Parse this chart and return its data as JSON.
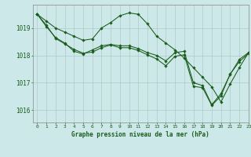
{
  "background_color": "#cce8e8",
  "grid_color": "#b0c8c8",
  "line_color": "#1a5c1a",
  "title": "Graphe pression niveau de la mer (hPa)",
  "xlim": [
    -0.5,
    23
  ],
  "ylim": [
    1015.55,
    1019.85
  ],
  "yticks": [
    1016,
    1017,
    1018,
    1019
  ],
  "xticks": [
    0,
    1,
    2,
    3,
    4,
    5,
    6,
    7,
    8,
    9,
    10,
    11,
    12,
    13,
    14,
    15,
    16,
    17,
    18,
    19,
    20,
    21,
    22,
    23
  ],
  "series": [
    {
      "x": [
        0,
        1,
        2,
        3,
        4,
        5,
        6,
        7,
        8,
        9,
        10,
        11,
        12,
        13,
        14,
        15,
        16,
        17,
        18,
        19,
        20,
        21,
        22,
        23
      ],
      "y": [
        1019.5,
        1019.25,
        1019.0,
        1018.85,
        1018.7,
        1018.55,
        1018.6,
        1019.0,
        1019.2,
        1019.45,
        1019.55,
        1019.5,
        1019.15,
        1018.7,
        1018.45,
        1018.2,
        1017.9,
        1017.55,
        1017.2,
        1016.85,
        1016.3,
        1016.95,
        1017.55,
        1018.1
      ]
    },
    {
      "x": [
        0,
        1,
        2,
        3,
        4,
        5,
        6,
        7,
        8,
        9,
        10,
        11,
        12,
        13,
        14,
        15,
        16,
        17,
        18,
        19,
        20,
        21,
        22,
        23
      ],
      "y": [
        1019.5,
        1019.05,
        1018.65,
        1018.45,
        1018.15,
        1018.05,
        1018.2,
        1018.35,
        1018.4,
        1018.35,
        1018.35,
        1018.25,
        1018.1,
        1018.0,
        1017.8,
        1018.1,
        1018.15,
        1017.0,
        1016.9,
        1016.2,
        1016.6,
        1017.3,
        1017.85,
        1018.1
      ]
    },
    {
      "x": [
        0,
        1,
        2,
        3,
        4,
        5,
        6,
        7,
        8,
        9,
        10,
        11,
        12,
        13,
        14,
        15,
        16,
        17,
        18,
        19,
        20,
        21,
        22,
        23
      ],
      "y": [
        1019.5,
        1019.1,
        1018.62,
        1018.42,
        1018.22,
        1018.08,
        1018.12,
        1018.28,
        1018.38,
        1018.28,
        1018.28,
        1018.18,
        1018.02,
        1017.87,
        1017.62,
        1017.97,
        1018.02,
        1016.87,
        1016.82,
        1016.17,
        1016.52,
        1017.32,
        1017.77,
        1018.07
      ]
    }
  ]
}
